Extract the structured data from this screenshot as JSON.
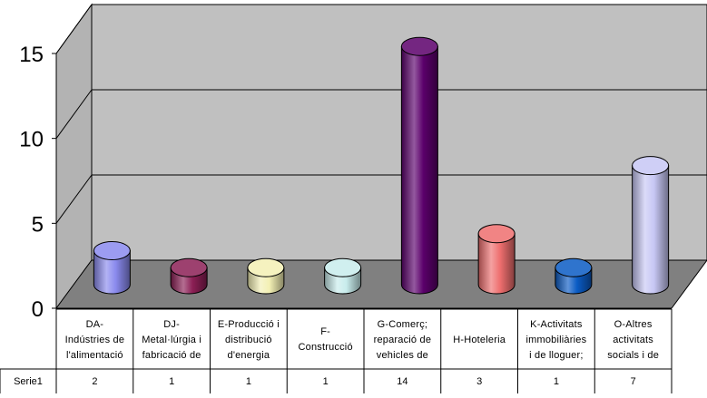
{
  "chart_data": {
    "type": "bar",
    "title": "",
    "xlabel": "",
    "ylabel": "",
    "ylim": [
      0,
      15
    ],
    "yticks": [
      0,
      5,
      10,
      15
    ],
    "grid": true,
    "style": "3d-cylinder",
    "categories": [
      "DA-\nIndústries de\nl'alimentació",
      "DJ-\nMetal·lúrgia i\nfabricació de",
      "E-Producció i\ndistribució\nd'energia",
      "F-\nConstrucció",
      "G-Comerç;\nreparació de\nvehicles de",
      "H-Hoteleria",
      "K-Activitats\nimmobiliàries\ni de lloguer;",
      "O-Altres\nactivitats\nsocials i de"
    ],
    "series": [
      {
        "name": "Serie1",
        "values": [
          2,
          1,
          1,
          1,
          14,
          3,
          1,
          7
        ],
        "display_values": [
          "2",
          "1",
          "1",
          "1",
          "14",
          "3",
          "1",
          "7"
        ],
        "colors": [
          "#8a8aee",
          "#8c1f55",
          "#f3f0b4",
          "#c8ecec",
          "#5b006b",
          "#ee6e6e",
          "#0a5bc4",
          "#c7c7f4"
        ]
      }
    ]
  }
}
